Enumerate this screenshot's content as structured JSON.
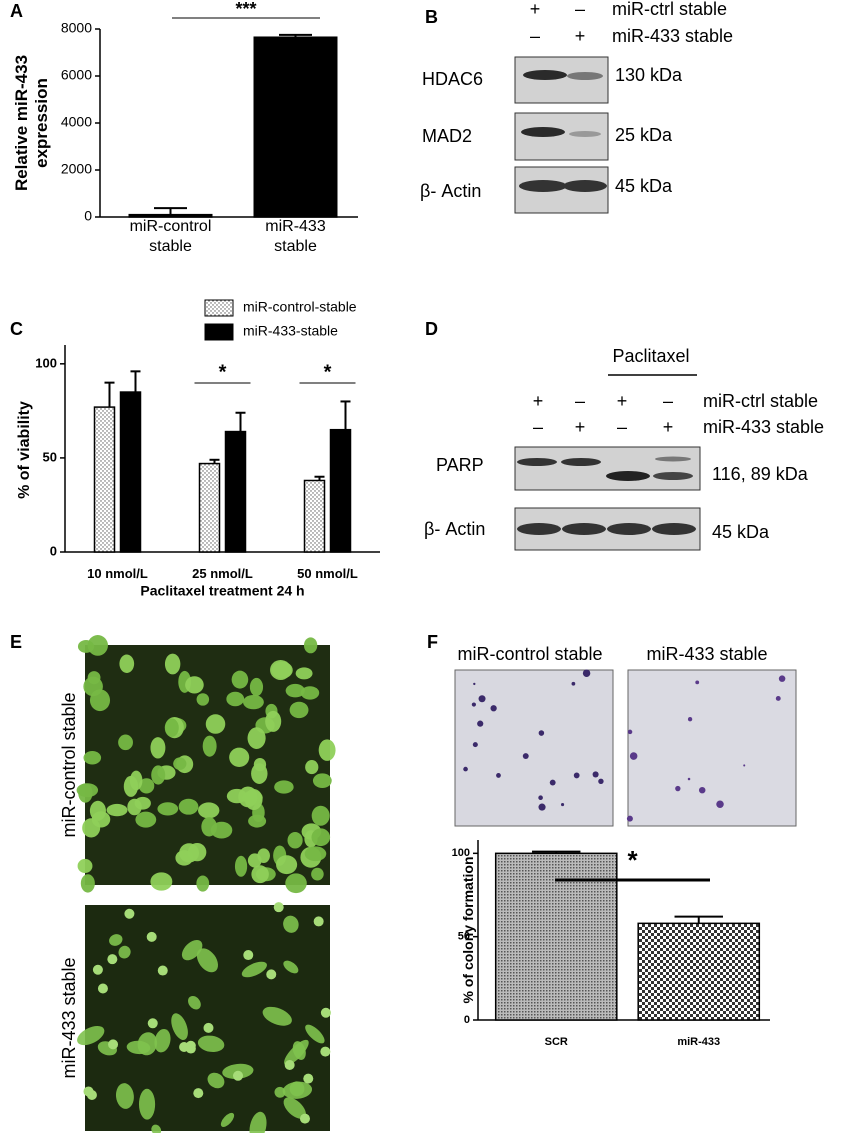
{
  "chart_data": [
    {
      "type": "bar",
      "panel": "A",
      "ylabel": "Relative miR-433\nexpression",
      "categories": [
        "miR-control\nstable",
        "miR-433\nstable"
      ],
      "values": [
        100,
        7650
      ],
      "errors": [
        280,
        100
      ],
      "color": "#000000",
      "ylim": [
        0,
        8000
      ],
      "yticks": [
        0,
        2000,
        4000,
        6000,
        8000
      ],
      "significance": "***"
    },
    {
      "type": "grouped_bar",
      "panel": "C",
      "xlabel": "Paclitaxel treatment 24 h",
      "ylabel": "% of viability",
      "categories": [
        "10 nmol/L",
        "25 nmol/L",
        "50 nmol/L"
      ],
      "series": [
        {
          "name": "miR-control-stable",
          "color": "#ffffff",
          "pattern": "dots",
          "values": [
            77,
            47,
            38
          ],
          "errors": [
            13,
            2,
            2
          ]
        },
        {
          "name": "miR-433-stable",
          "color": "#000000",
          "values": [
            85,
            64,
            65
          ],
          "errors": [
            11,
            10,
            15
          ]
        }
      ],
      "ylim": [
        0,
        110
      ],
      "yticks": [
        0,
        50,
        100
      ],
      "significance": [
        null,
        "*",
        "*"
      ]
    },
    {
      "type": "bar",
      "panel": "F",
      "ylabel": "% of colony formation",
      "categories": [
        "SCR",
        "miR-433"
      ],
      "values": [
        100,
        58
      ],
      "errors": [
        1,
        4
      ],
      "patterns": [
        "fine",
        "coarse"
      ],
      "color": "#888888",
      "ylim": [
        0,
        108
      ],
      "yticks": [
        0,
        50,
        100
      ],
      "significance": "*"
    }
  ],
  "blot_B": {
    "panel": "B",
    "rows": [
      {
        "label": "miR-ctrl stable",
        "signs": [
          "+",
          "–"
        ]
      },
      {
        "label": "miR-433 stable",
        "signs": [
          "–",
          "+"
        ]
      }
    ],
    "bands": [
      {
        "label": "HDAC6",
        "size": "130 kDa"
      },
      {
        "label": "MAD2",
        "size": "25 kDa"
      },
      {
        "label": "β- Actin",
        "size": "45 kDa"
      }
    ]
  },
  "blot_D": {
    "panel": "D",
    "treatment": "Paclitaxel",
    "rows": [
      {
        "label": "miR-ctrl stable",
        "signs": [
          "+",
          "–",
          "+",
          "–"
        ]
      },
      {
        "label": "miR-433 stable",
        "signs": [
          "–",
          "+",
          "–",
          "+"
        ]
      }
    ],
    "bands": [
      {
        "label": "PARP",
        "size": "116, 89 kDa"
      },
      {
        "label": "β- Actin",
        "size": "45 kDa"
      }
    ]
  },
  "images_E": {
    "panel": "E",
    "labels": [
      "miR-control stable",
      "miR-433 stable"
    ]
  },
  "images_F": {
    "labels": [
      "miR-control stable",
      "miR-433 stable"
    ]
  }
}
